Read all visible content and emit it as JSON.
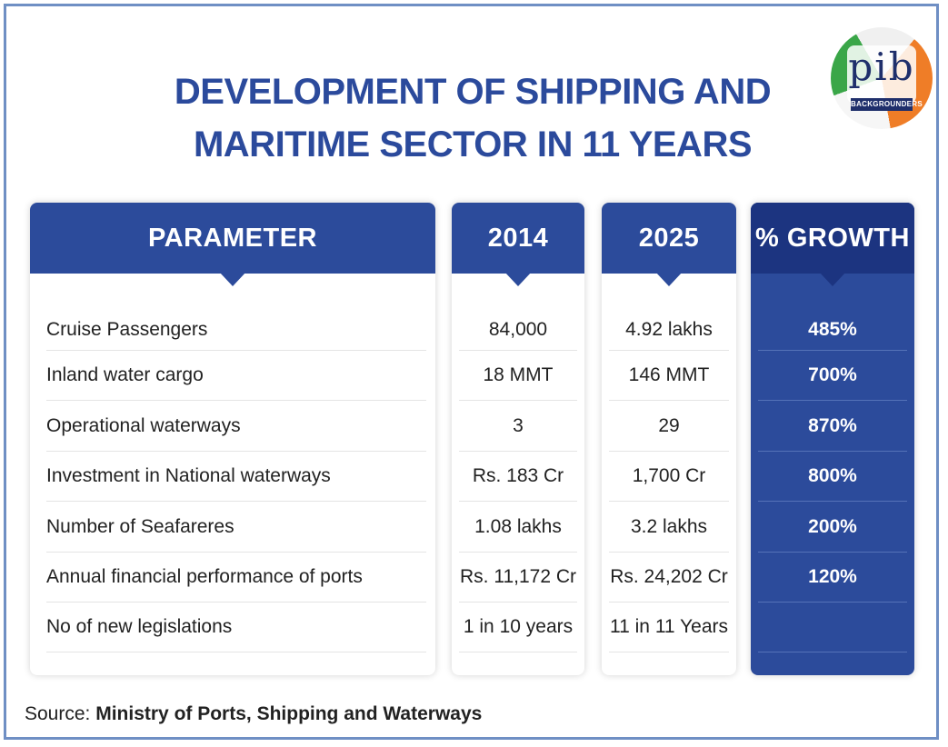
{
  "title_line1": "DEVELOPMENT OF SHIPPING AND",
  "title_line2": "MARITIME SECTOR IN 11 YEARS",
  "logo": {
    "text": "pib",
    "badge": "BACKGROUNDERS"
  },
  "columns": {
    "parameter": "PARAMETER",
    "y2014": "2014",
    "y2025": "2025",
    "growth": "% GROWTH"
  },
  "rows": [
    {
      "parameter": "Cruise Passengers",
      "y2014": "84,000",
      "y2025": "4.92 lakhs",
      "growth": "485%"
    },
    {
      "parameter": "Inland water cargo",
      "y2014": "18 MMT",
      "y2025": "146 MMT",
      "growth": "700%"
    },
    {
      "parameter": "Operational waterways",
      "y2014": "3",
      "y2025": "29",
      "growth": "870%"
    },
    {
      "parameter": "Investment in National waterways",
      "y2014": "Rs. 183 Cr",
      "y2025": "1,700 Cr",
      "growth": "800%"
    },
    {
      "parameter": "Number of Seafareres",
      "y2014": "1.08 lakhs",
      "y2025": "3.2 lakhs",
      "growth": "200%"
    },
    {
      "parameter": "Annual financial performance of ports",
      "y2014": "Rs. 11,172 Cr",
      "y2025": "Rs. 24,202 Cr",
      "growth": "120%"
    },
    {
      "parameter": "No of new legislations",
      "y2014": "1 in 10 years",
      "y2025": "11 in 11 Years",
      "growth": ""
    }
  ],
  "source": {
    "label": "Source: ",
    "value": "Ministry of Ports, Shipping and Waterways"
  },
  "colors": {
    "header_blue": "#2c4b9b",
    "growth_blue": "#2c4b9b",
    "title_blue": "#2b4a9c"
  }
}
